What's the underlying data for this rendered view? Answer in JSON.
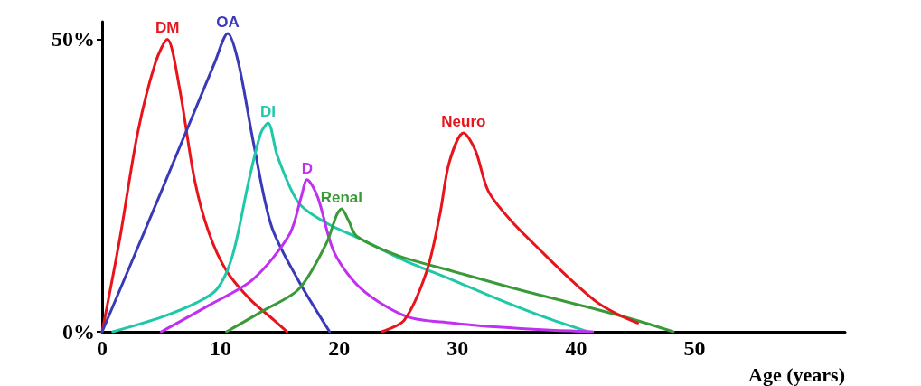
{
  "chart_data": {
    "type": "line",
    "xlabel": "Age (years)",
    "xlim": [
      0,
      62.7
    ],
    "xticks": [
      0,
      10,
      20,
      30,
      40,
      50
    ],
    "ylim": [
      0,
      53
    ],
    "yticks": [
      {
        "value": 0,
        "label": "0%"
      },
      {
        "value": 50,
        "label": "50%"
      }
    ],
    "grid": false,
    "legend": false,
    "marker": "none",
    "line_style": "solid",
    "series": [
      {
        "name": "DM",
        "color": "#e8141c",
        "x": [
          0,
          1.5,
          3,
          4.5,
          5.5,
          6.5,
          7.8,
          9,
          10.5,
          12.5,
          14.5,
          15.6
        ],
        "values": [
          0,
          16,
          34,
          46,
          50,
          42,
          26,
          17,
          10.4,
          5.5,
          2,
          0
        ]
      },
      {
        "name": "OA",
        "color": "#3a3ab8",
        "x": [
          0,
          5,
          9.5,
          10.6,
          11.5,
          12.8,
          14.3,
          16.5,
          19.2
        ],
        "values": [
          0,
          24,
          46,
          51,
          46,
          32,
          18,
          9,
          0
        ]
      },
      {
        "name": "DI",
        "color": "#20c8a8",
        "x": [
          0.9,
          5,
          8,
          9.7,
          11,
          12.4,
          13.4,
          14,
          14.8,
          16.6,
          19,
          21.9,
          25.5,
          29.5,
          33.5,
          37.2,
          41
        ],
        "values": [
          0,
          2.5,
          5,
          7.3,
          13,
          26,
          34,
          35.7,
          30,
          22,
          18.5,
          15.8,
          12.2,
          8.9,
          5.5,
          2.6,
          0
        ]
      },
      {
        "name": "D",
        "color": "#c030f0",
        "x": [
          5,
          9,
          12.7,
          15.8,
          16.8,
          17.3,
          18.2,
          19.6,
          21.9,
          25.7,
          29.5,
          33.4,
          37.5,
          41.4
        ],
        "values": [
          0,
          4.5,
          8.9,
          16.6,
          23,
          26,
          23,
          13.5,
          7.3,
          2.6,
          1.5,
          0.8,
          0.3,
          0
        ]
      },
      {
        "name": "Renal",
        "color": "#3a9a3a",
        "x": [
          10.5,
          13.5,
          16.6,
          18.9,
          19.8,
          20.2,
          20.8,
          21.5,
          25,
          29.5,
          35,
          41,
          45,
          48.2
        ],
        "values": [
          0,
          3.5,
          7.3,
          15,
          20,
          21,
          19,
          16.3,
          13,
          10.4,
          7.3,
          4.2,
          2,
          0
        ]
      },
      {
        "name": "Neuro",
        "color": "#e8141c",
        "x": [
          23.6,
          25.5,
          27.4,
          28.5,
          29.3,
          30.5,
          31.5,
          32.6,
          34.5,
          37.2,
          39.5,
          41.8,
          43.5,
          45.2
        ],
        "values": [
          0,
          2,
          10.4,
          20,
          29,
          34,
          31,
          24,
          19,
          13.5,
          9,
          5,
          3,
          1.5
        ]
      }
    ]
  }
}
